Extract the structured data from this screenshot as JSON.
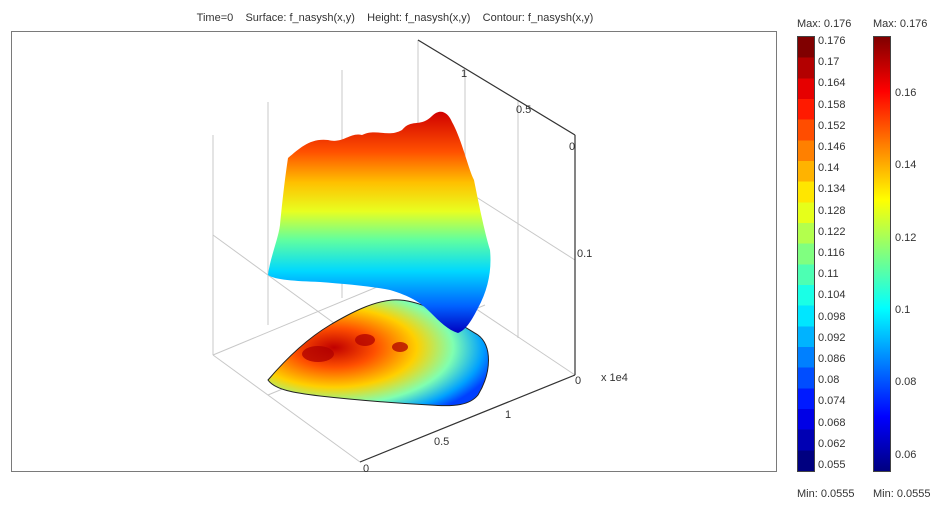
{
  "title": "Time=0    Surface: f_nasysh(x,y)    Height: f_nasysh(x,y)    Contour: f_nasysh(x,y)",
  "chart_data": {
    "type": "surface",
    "title": "Time=0    Surface: f_nasysh(x,y)    Height: f_nasysh(x,y)    Contour: f_nasysh(x,y)",
    "axes": {
      "x_ticks": [
        "0",
        "0.5",
        "1"
      ],
      "y_ticks": [
        "0",
        "0.5",
        "1"
      ],
      "z_ticks": [
        "0",
        "0.1"
      ],
      "scale_label": "x 1e4"
    },
    "value_range": [
      0.0555,
      0.176
    ],
    "colorbars": [
      {
        "name": "surface",
        "max_label": "Max: 0.176",
        "min_label": "Min: 0.0555",
        "discrete_levels": true,
        "ticks": [
          "0.176",
          "0.17",
          "0.164",
          "0.158",
          "0.152",
          "0.146",
          "0.14",
          "0.134",
          "0.128",
          "0.122",
          "0.116",
          "0.11",
          "0.104",
          "0.098",
          "0.092",
          "0.086",
          "0.08",
          "0.074",
          "0.068",
          "0.062",
          "0.055"
        ]
      },
      {
        "name": "contour",
        "max_label": "Max: 0.176",
        "min_label": "Min: 0.0555",
        "discrete_levels": false,
        "ticks": [
          "0.16",
          "0.14",
          "0.12",
          "0.1",
          "0.08",
          "0.06"
        ]
      }
    ],
    "colormap": [
      "#000080",
      "#0000ff",
      "#0080ff",
      "#00ffff",
      "#80ff80",
      "#ffff00",
      "#ff8000",
      "#ff0000",
      "#800000"
    ]
  }
}
